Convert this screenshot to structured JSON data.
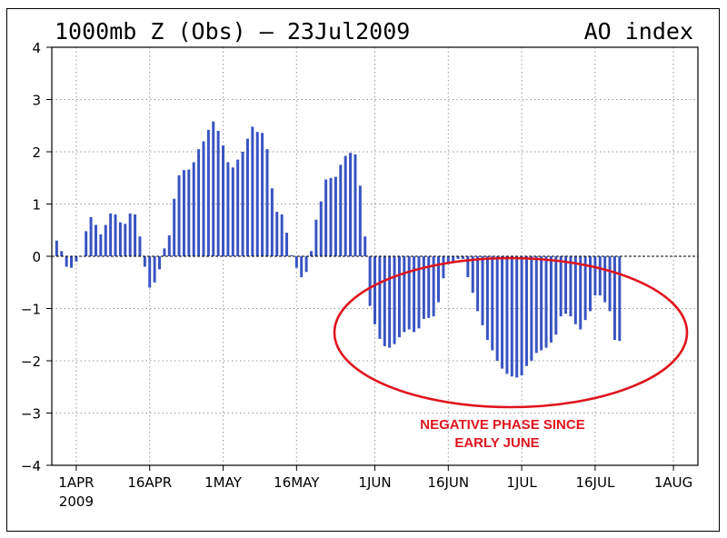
{
  "title_left": "1000mb Z (Obs) – 23Jul2009",
  "title_right": "AO index",
  "annotation": {
    "line1": "NEGATIVE PHASE SINCE",
    "line2": "EARLY JUNE",
    "color": "#e0141e"
  },
  "colors": {
    "bar": "#3853c2",
    "grid": "#9a9a9a",
    "zero_line": "#000000",
    "ellipse": "#e0141e"
  },
  "chart_data": {
    "type": "bar",
    "title": "1000mb Z (Obs) – 23Jul2009",
    "subtitle": "AO index",
    "x_start": "2009-03-27",
    "x_end": "2009-08-06",
    "ylim": [
      -4,
      4
    ],
    "yticks": [
      4,
      3,
      2,
      1,
      0,
      -1,
      -2,
      -3,
      -4
    ],
    "xticks": [
      {
        "date": "2009-04-01",
        "label": "1APR",
        "sublabel": "2009"
      },
      {
        "date": "2009-04-16",
        "label": "16APR",
        "sublabel": ""
      },
      {
        "date": "2009-05-01",
        "label": "1MAY",
        "sublabel": ""
      },
      {
        "date": "2009-05-16",
        "label": "16MAY",
        "sublabel": ""
      },
      {
        "date": "2009-06-01",
        "label": "1JUN",
        "sublabel": ""
      },
      {
        "date": "2009-06-16",
        "label": "16JUN",
        "sublabel": ""
      },
      {
        "date": "2009-07-01",
        "label": "1JUL",
        "sublabel": ""
      },
      {
        "date": "2009-07-16",
        "label": "16JUL",
        "sublabel": ""
      },
      {
        "date": "2009-08-01",
        "label": "1AUG",
        "sublabel": ""
      }
    ],
    "grid": true,
    "series": [
      {
        "start_date": "2009-03-28",
        "values": [
          0.3,
          0.1,
          -0.2,
          -0.22,
          -0.1,
          0.0,
          0.48,
          0.75,
          0.6,
          0.42,
          0.6,
          0.82,
          0.8,
          0.65,
          0.62,
          0.82,
          0.8,
          0.38,
          -0.2,
          -0.6,
          -0.5,
          -0.25,
          0.15,
          0.4,
          1.1,
          1.55,
          1.65,
          1.66,
          1.8,
          2.05,
          2.2,
          2.42,
          2.58,
          2.4,
          2.12,
          1.8,
          1.7,
          1.85,
          2.0,
          2.25,
          2.48,
          2.38,
          2.36,
          2.05,
          1.3,
          0.85,
          0.8,
          0.45,
          0.02,
          -0.22,
          -0.4,
          -0.3,
          0.1,
          0.7,
          1.05,
          1.47,
          1.5,
          1.52,
          1.75,
          1.92,
          1.98,
          1.95,
          1.35,
          0.38,
          -0.95,
          -1.3,
          -1.58,
          -1.72,
          -1.75,
          -1.68,
          -1.55,
          -1.45,
          -1.4,
          -1.45,
          -1.38,
          -1.2,
          -1.18,
          -1.15,
          -0.88,
          -0.42,
          -0.15,
          -0.1,
          -0.05,
          -0.05,
          -0.4,
          -0.7,
          -1.05,
          -1.32,
          -1.6,
          -1.8,
          -2.0,
          -2.15,
          -2.25,
          -2.3,
          -2.32,
          -2.28,
          -2.1,
          -2.0,
          -1.85,
          -1.8,
          -1.75,
          -1.65,
          -1.5,
          -1.15,
          -1.1,
          -1.15,
          -1.3,
          -1.4,
          -1.22,
          -1.05,
          -0.75,
          -0.75,
          -0.88,
          -1.05,
          -1.6,
          -1.62
        ]
      }
    ]
  }
}
